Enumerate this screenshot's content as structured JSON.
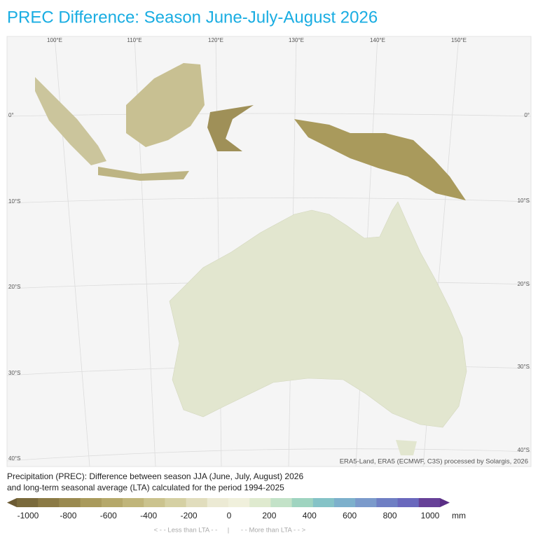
{
  "title": "PREC Difference: Season June-July-August 2026",
  "map": {
    "longitude_labels": [
      "100°E",
      "110°E",
      "120°E",
      "130°E",
      "140°E",
      "150°E"
    ],
    "latitude_labels_left": [
      "0°",
      "10°S",
      "20°S",
      "30°S",
      "40°S"
    ],
    "latitude_labels_right": [
      "0°",
      "10°S",
      "20°S",
      "30°S",
      "40°S"
    ],
    "attribution": "ERA5-Land, ERA5 (ECMWF, C3S) processed by Solargis, 2026"
  },
  "legend": {
    "description": [
      "Precipitation (PREC): Difference between season JJA (June, July, August) 2026",
      "and long-term seasonal average (LTA) calculated for the period 1994-2025"
    ],
    "colors": [
      "#6b5a33",
      "#7a6a3c",
      "#8b7a45",
      "#9a8a50",
      "#a99a5c",
      "#b5a86a",
      "#c0b57a",
      "#cbc38e",
      "#d5d0a3",
      "#e1ddbd",
      "#ecead4",
      "#f0f0dc",
      "#dfeacf",
      "#c3e2c8",
      "#9fd4c0",
      "#85c3c7",
      "#7db0cc",
      "#7b9acb",
      "#6f7fc4",
      "#6a68bd",
      "#674198",
      "#5a2e85"
    ],
    "ticks": [
      -1000,
      -800,
      -600,
      -400,
      -200,
      0,
      200,
      400,
      600,
      800,
      1000
    ],
    "unit": "mm",
    "less_label": "< - -  Less than LTA  - -",
    "separator": "|",
    "more_label": "- -  More than LTA  - - >"
  }
}
